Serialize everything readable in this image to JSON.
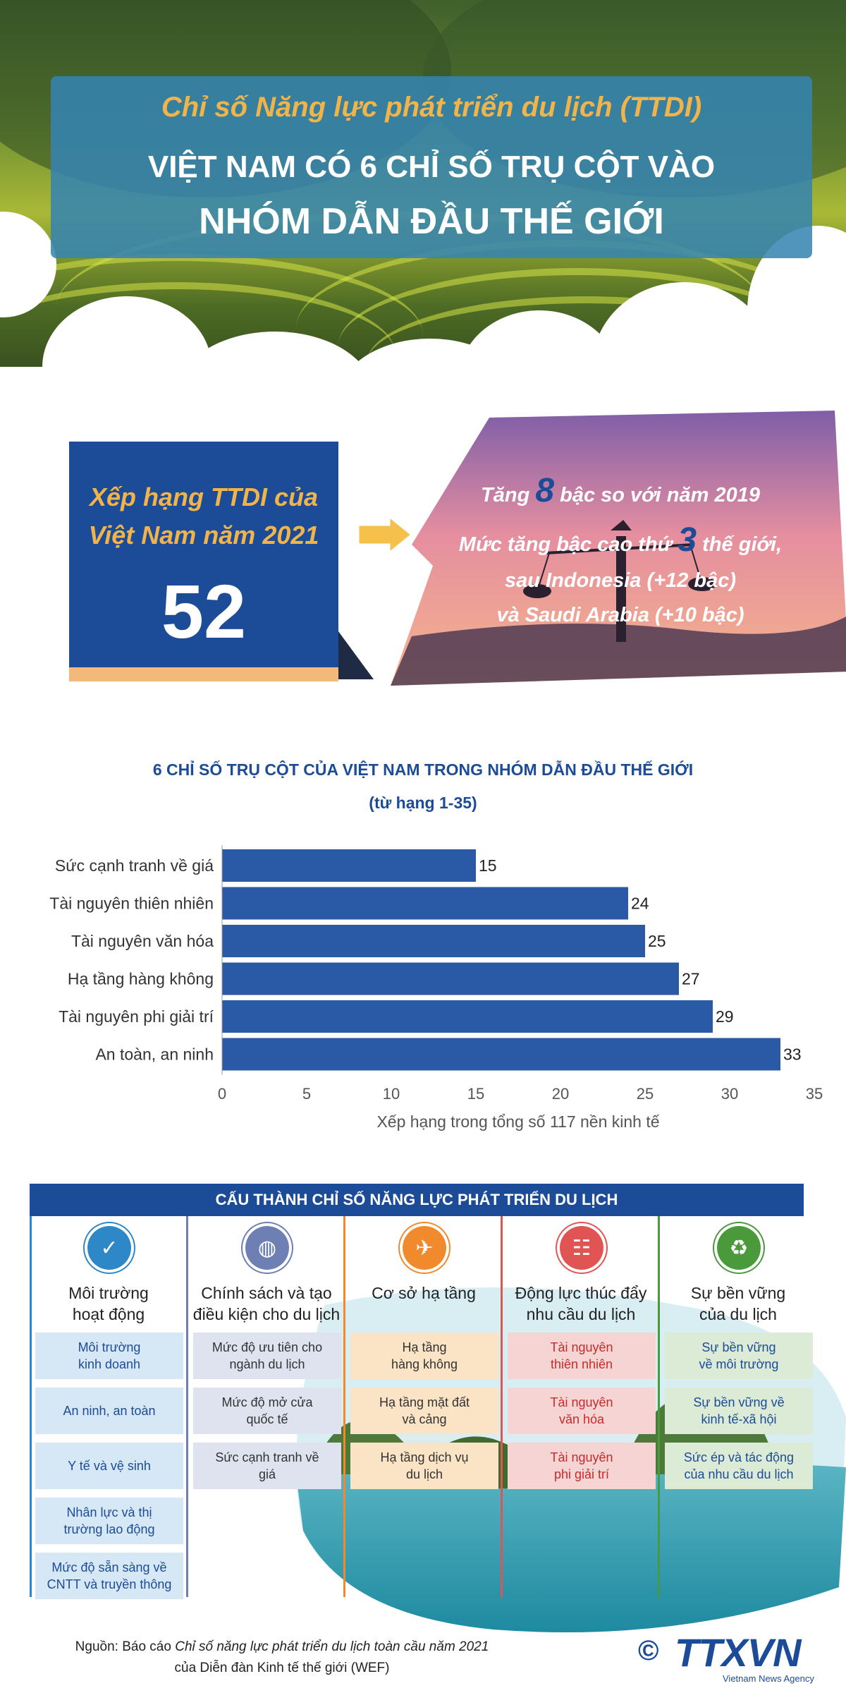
{
  "header": {
    "subtitle": "Chỉ số Năng lực phát triển du lịch (TTDI)",
    "title_line1": "VIỆT NAM CÓ 6 CHỈ SỐ TRỤ CỘT VÀO",
    "title_line2": "NHÓM DẪN ĐẦU THẾ GIỚI"
  },
  "ranking": {
    "label_line1": "Xếp hạng TTDI của",
    "label_line2": "Việt Nam năm 2021",
    "value": "52"
  },
  "highlights": {
    "line1_prefix": "Tăng ",
    "line1_number": "8",
    "line1_suffix": " bậc so với năm 2019",
    "line2_prefix": "Mức tăng bậc cao thứ ",
    "line2_number": "3",
    "line2_suffix": " thế giới,",
    "line3": "sau Indonesia (+12 bậc)",
    "line4": "và Saudi Arabia (+10 bậc)"
  },
  "chart_data": {
    "type": "bar",
    "orientation": "horizontal",
    "title": "6 CHỈ SỐ TRỤ CỘT CỦA VIỆT NAM TRONG NHÓM DẪN ĐẦU THẾ GIỚI",
    "subtitle": "(từ hạng 1-35)",
    "categories": [
      "Sức cạnh tranh về giá",
      "Tài nguyên thiên nhiên",
      "Tài nguyên văn hóa",
      "Hạ tầng hàng không",
      "Tài nguyên phi giải trí",
      "An toàn, an ninh"
    ],
    "values": [
      15,
      24,
      25,
      27,
      29,
      33
    ],
    "xlabel": "Xếp hạng trong tổng số 117 nền kinh tế",
    "xlim": [
      0,
      35
    ],
    "xticks": [
      0,
      5,
      10,
      15,
      20,
      25,
      30,
      35
    ],
    "bar_color": "#2a5aa6",
    "grid": false,
    "legend": "none"
  },
  "components": {
    "heading": "CẤU THÀNH CHỈ SỐ NĂNG LỰC PHÁT TRIỂN DU LỊCH",
    "columns": [
      {
        "title_line1": "Môi trường",
        "title_line2": "hoạt động",
        "icon": "shield-check-icon",
        "color": "#2e87c6",
        "item_color": "#d6e8f5",
        "items": [
          [
            "Môi trường",
            "kinh doanh"
          ],
          [
            "An ninh, an toàn"
          ],
          [
            "Y tế và vệ sinh"
          ],
          [
            "Nhân lực và thị",
            "trường lao động"
          ],
          [
            "Mức độ sẵn sàng về",
            "CNTT và truyền thông"
          ]
        ]
      },
      {
        "title_line1": "Chính sách và tạo",
        "title_line2": "điều kiện cho du lịch",
        "icon": "globe-icon",
        "color": "#6d7fb3",
        "item_color": "#dfe3ef",
        "items": [
          [
            "Mức độ ưu tiên cho",
            "ngành du lịch"
          ],
          [
            "Mức độ mở cửa",
            "quốc tế"
          ],
          [
            "Sức cạnh tranh về",
            "giá"
          ]
        ]
      },
      {
        "title_line1": "Cơ sở hạ tầng",
        "title_line2": "",
        "icon": "airport-icon",
        "color": "#f08a2c",
        "item_color": "#fbe3c6",
        "items": [
          [
            "Hạ tầng",
            "hàng không"
          ],
          [
            "Hạ tầng mặt đất",
            "và cảng"
          ],
          [
            "Hạ tầng dịch vụ",
            "du lịch"
          ]
        ]
      },
      {
        "title_line1": "Động lực thúc đẩy",
        "title_line2": "nhu cầu du lịch",
        "icon": "ticket-icon",
        "color": "#e05454",
        "item_color": "#f7d4d4",
        "items": [
          [
            "Tài nguyên",
            "thiên nhiên"
          ],
          [
            "Tài nguyên",
            "văn hóa"
          ],
          [
            "Tài nguyên",
            "phi giải trí"
          ]
        ]
      },
      {
        "title_line1": "Sự bền vững",
        "title_line2": "của du lịch",
        "icon": "recycle-icon",
        "color": "#4a9a3c",
        "item_color": "#dcebd6",
        "items": [
          [
            "Sự bền vững",
            "về môi trường"
          ],
          [
            "Sự bền vững về",
            "kinh tế-xã hội"
          ],
          [
            "Sức ép và tác động",
            "của nhu cầu du lịch"
          ]
        ]
      }
    ]
  },
  "footer": {
    "source_prefix": "Nguồn: Báo cáo ",
    "source_italic": "Chỉ số năng lực phát triển du lịch toàn cầu năm 2021",
    "source_line2": "của Diễn đàn Kinh tế thế giới (WEF)",
    "logo_copyright": "©",
    "logo_text": "TTXVN",
    "logo_sub": "Vietnam News Agency"
  }
}
